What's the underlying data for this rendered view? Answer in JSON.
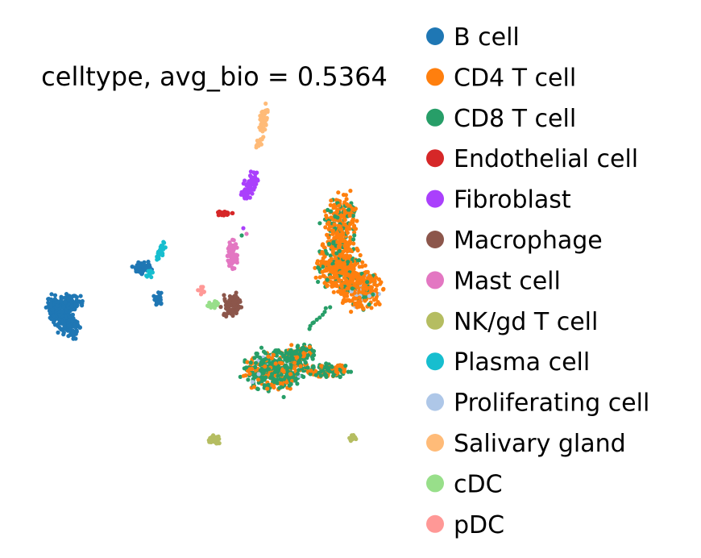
{
  "chart_data": {
    "type": "scatter",
    "title": "celltype, avg_bio = 0.5364",
    "xlabel": "",
    "ylabel": "",
    "axes_visible": false,
    "grid": false,
    "legend_placement": "right",
    "series": [
      {
        "name": "B cell",
        "color": "#1f77b4"
      },
      {
        "name": "CD4 T cell",
        "color": "#ff7f0e"
      },
      {
        "name": "CD8 T cell",
        "color": "#279e68"
      },
      {
        "name": "Endothelial cell",
        "color": "#d62728"
      },
      {
        "name": "Fibroblast",
        "color": "#aa40fc"
      },
      {
        "name": "Macrophage",
        "color": "#8c564b"
      },
      {
        "name": "Mast cell",
        "color": "#e377c2"
      },
      {
        "name": "NK/gd T cell",
        "color": "#b5bd61"
      },
      {
        "name": "Plasma cell",
        "color": "#17becf"
      },
      {
        "name": "Proliferating cell",
        "color": "#aec7e8"
      },
      {
        "name": "Salivary gland",
        "color": "#ffbb78"
      },
      {
        "name": "cDC",
        "color": "#98df8a"
      },
      {
        "name": "pDC",
        "color": "#ff9896"
      }
    ]
  }
}
